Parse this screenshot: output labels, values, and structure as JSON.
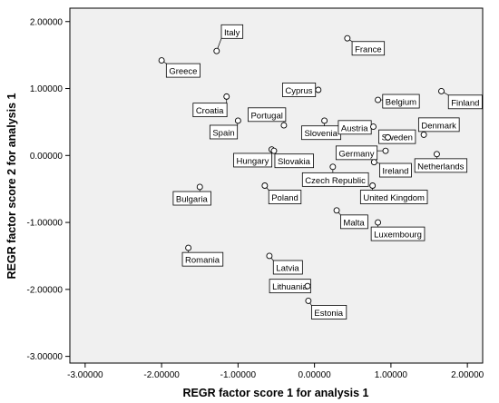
{
  "chart_data": {
    "type": "scatter",
    "xlabel": "REGR factor score   1 for analysis 1",
    "ylabel": "REGR factor score   2 for analysis 1",
    "xlim": [
      -3.2,
      2.2
    ],
    "ylim": [
      -3.1,
      2.2
    ],
    "xticks": [
      -3.0,
      -2.0,
      -1.0,
      0.0,
      1.0,
      2.0
    ],
    "xtick_labels": [
      "-3.00000",
      "-2.00000",
      "-1.00000",
      "0.00000",
      "1.00000",
      "2.00000"
    ],
    "yticks": [
      2.0,
      1.0,
      0.0,
      -1.0,
      -2.0,
      -3.0
    ],
    "ytick_labels": [
      "2.00000",
      "1.00000",
      "0.00000",
      "-1.00000",
      "-2.00000",
      "-3.00000"
    ],
    "grid": false,
    "points": [
      {
        "label": "Italy",
        "x": -1.28,
        "y": 1.56,
        "lx": -1.23,
        "ly": 1.85
      },
      {
        "label": "France",
        "x": 0.43,
        "y": 1.75,
        "lx": 0.48,
        "ly": 1.6
      },
      {
        "label": "Greece",
        "x": -2.0,
        "y": 1.42,
        "lx": -1.95,
        "ly": 1.27
      },
      {
        "label": "Finland",
        "x": 1.66,
        "y": 0.96,
        "lx": 1.74,
        "ly": 0.8
      },
      {
        "label": "Cyprus",
        "x": 0.05,
        "y": 0.98,
        "lx": -0.43,
        "ly": 0.98
      },
      {
        "label": "Croatia",
        "x": -1.15,
        "y": 0.88,
        "lx": -1.6,
        "ly": 0.68
      },
      {
        "label": "Belgium",
        "x": 0.83,
        "y": 0.83,
        "lx": 0.88,
        "ly": 0.81
      },
      {
        "label": "Portugal",
        "x": -0.4,
        "y": 0.45,
        "lx": -0.88,
        "ly": 0.61
      },
      {
        "label": "Spain",
        "x": -1.0,
        "y": 0.52,
        "lx": -1.38,
        "ly": 0.35
      },
      {
        "label": "Slovenia",
        "x": 0.13,
        "y": 0.52,
        "lx": -0.18,
        "ly": 0.34
      },
      {
        "label": "Austria",
        "x": 0.77,
        "y": 0.43,
        "lx": 0.3,
        "ly": 0.42
      },
      {
        "label": "Denmark",
        "x": 1.43,
        "y": 0.31,
        "lx": 1.35,
        "ly": 0.46
      },
      {
        "label": "Sweden",
        "x": 0.96,
        "y": 0.27,
        "lx": 0.83,
        "ly": 0.28
      },
      {
        "label": "Hungary",
        "x": -0.56,
        "y": 0.09,
        "lx": -1.07,
        "ly": -0.07
      },
      {
        "label": "Slovakia",
        "x": -0.53,
        "y": 0.07,
        "lx": -0.53,
        "ly": -0.08
      },
      {
        "label": "Germany",
        "x": 0.93,
        "y": 0.07,
        "lx": 0.27,
        "ly": 0.04
      },
      {
        "label": "Netherlands",
        "x": 1.6,
        "y": 0.02,
        "lx": 1.3,
        "ly": -0.15
      },
      {
        "label": "Ireland",
        "x": 0.78,
        "y": -0.1,
        "lx": 0.84,
        "ly": -0.22
      },
      {
        "label": "Czech Republic",
        "x": 0.24,
        "y": -0.17,
        "lx": -0.17,
        "ly": -0.36
      },
      {
        "label": "Poland",
        "x": -0.65,
        "y": -0.45,
        "lx": -0.61,
        "ly": -0.62
      },
      {
        "label": "United Kingdom",
        "x": 0.76,
        "y": -0.45,
        "lx": 0.59,
        "ly": -0.62
      },
      {
        "label": "Bulgaria",
        "x": -1.5,
        "y": -0.47,
        "lx": -1.86,
        "ly": -0.64
      },
      {
        "label": "Malta",
        "x": 0.29,
        "y": -0.82,
        "lx": 0.33,
        "ly": -0.99
      },
      {
        "label": "Luxembourg",
        "x": 0.83,
        "y": -1.0,
        "lx": 0.73,
        "ly": -1.17
      },
      {
        "label": "Romania",
        "x": -1.65,
        "y": -1.38,
        "lx": -1.74,
        "ly": -1.55
      },
      {
        "label": "Latvia",
        "x": -0.59,
        "y": -1.5,
        "lx": -0.55,
        "ly": -1.67
      },
      {
        "label": "Lithuania",
        "x": -0.09,
        "y": -1.95,
        "lx": -0.6,
        "ly": -1.95
      },
      {
        "label": "Estonia",
        "x": -0.08,
        "y": -2.17,
        "lx": -0.05,
        "ly": -2.34
      }
    ]
  }
}
